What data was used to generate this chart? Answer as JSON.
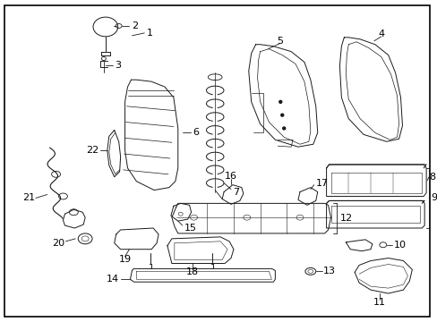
{
  "bg_color": "#ffffff",
  "border_color": "#000000",
  "text_color": "#000000",
  "fig_width": 4.89,
  "fig_height": 3.6,
  "dpi": 100,
  "line_color": "#1a1a1a",
  "lw": 0.7
}
